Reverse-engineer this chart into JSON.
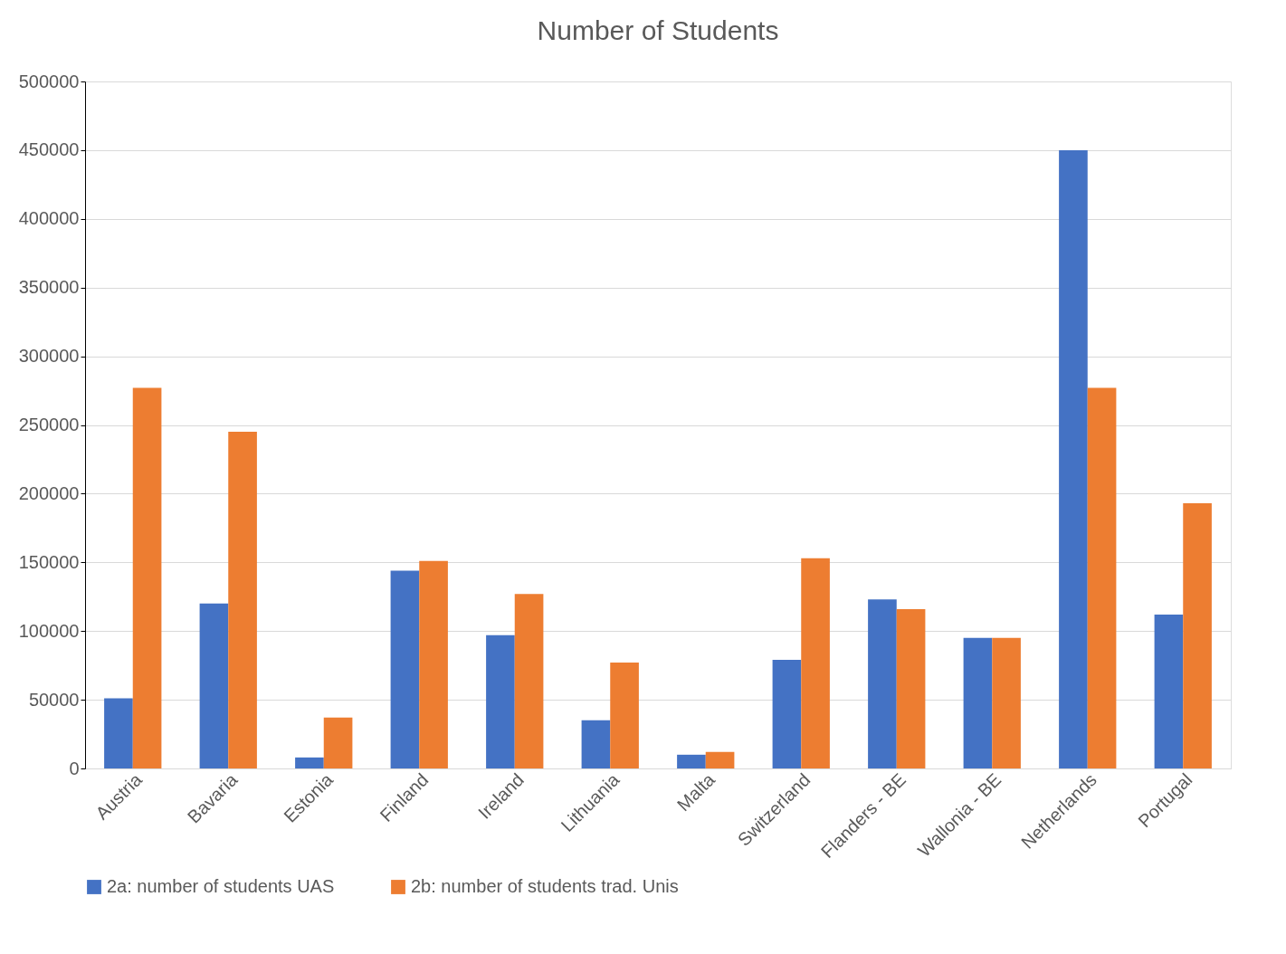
{
  "chart_data": {
    "type": "bar",
    "title": "Number of Students",
    "categories": [
      "Austria",
      "Bavaria",
      "Estonia",
      "Finland",
      "Ireland",
      "Lithuania",
      "Malta",
      "Switzerland",
      "Flanders - BE",
      "Wallonia - BE",
      "Netherlands",
      "Portugal"
    ],
    "series": [
      {
        "name": "2a: number of students UAS",
        "color": "#4472c4",
        "values": [
          51000,
          120000,
          8000,
          144000,
          97000,
          35000,
          10000,
          79000,
          123000,
          95000,
          450000,
          112000
        ]
      },
      {
        "name": "2b: number of students trad. Unis",
        "color": "#ed7d31",
        "values": [
          277000,
          245000,
          37000,
          151000,
          127000,
          77000,
          12000,
          153000,
          116000,
          95000,
          277000,
          193000
        ]
      }
    ],
    "ylim": [
      0,
      500000
    ],
    "yticks": [
      0,
      50000,
      100000,
      150000,
      200000,
      250000,
      300000,
      350000,
      400000,
      450000,
      500000
    ],
    "grid": "y",
    "legend": "bottom"
  }
}
